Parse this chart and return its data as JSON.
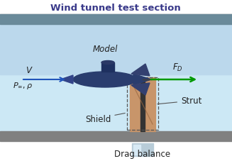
{
  "title": "Wind tunnel test section",
  "title_fontsize": 9.5,
  "title_color": "#3a3a8a",
  "bg_white": "#ffffff",
  "bg_tunnel": "#cce8f4",
  "bg_tunnel_top": "#b8d8ee",
  "tunnel_wall_color": "#808080",
  "tunnel_wall_top_color": "#6a8a9a",
  "model_label": "Model",
  "V_label": "V",
  "P_label": "$P_{\\infty}, \\rho$",
  "FD_label": "$F_D$",
  "strut_label": "Strut",
  "shield_label": "Shield",
  "drag_balance_label": "Drag balance",
  "arrow_color_V": "#2255bb",
  "arrow_color_FD": "#009900",
  "strut_fill": "#c8956a",
  "strut_edge": "#a07050",
  "shield_dash_color": "#555555",
  "drag_balance_fill": "#b8ccd8",
  "drag_balance_highlight": "#d8eaf5",
  "text_color": "#222222",
  "label_fontsize": 8.5,
  "small_fontsize": 8,
  "sub_body_color": "#2a3d6e",
  "sub_tower_color": "#1e3060",
  "sub_tail_color": "#344880"
}
